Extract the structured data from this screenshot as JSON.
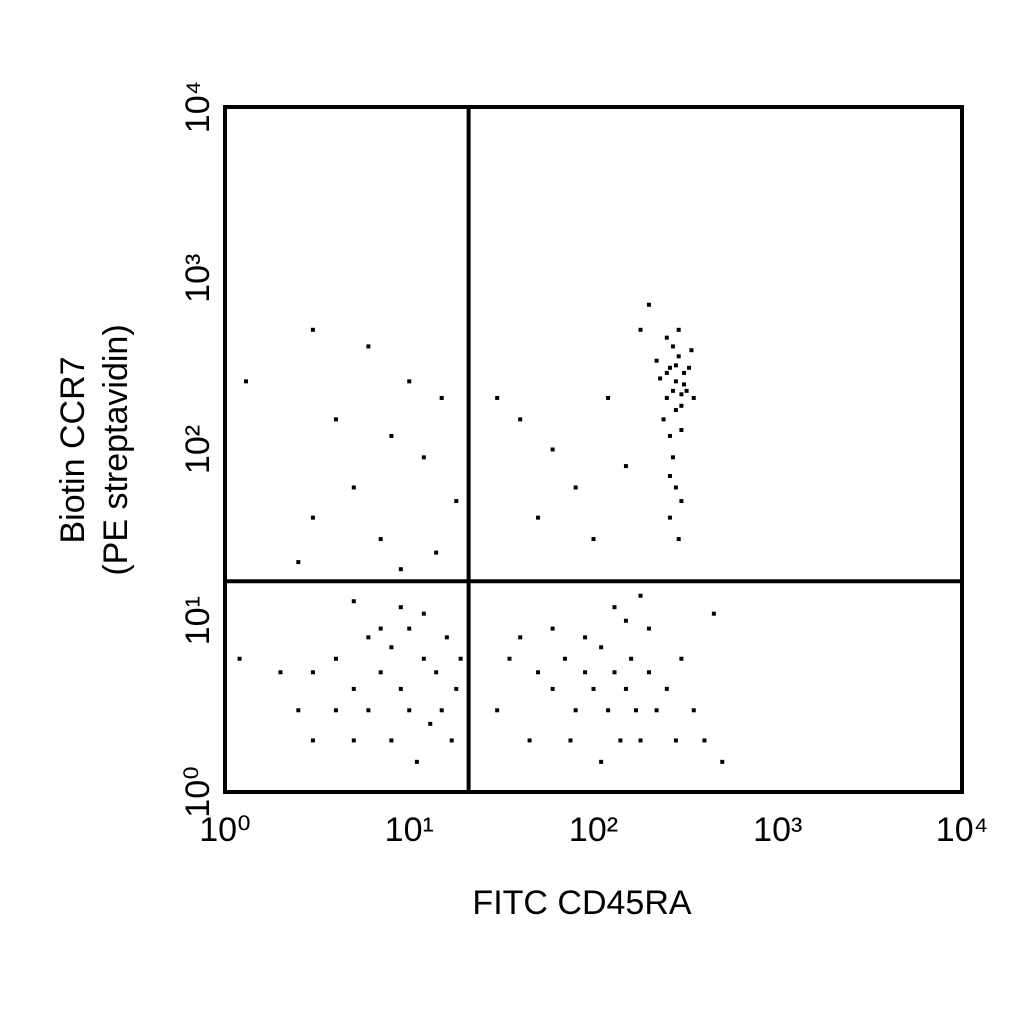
{
  "chart_data": {
    "type": "scatter",
    "x_label": "FITC CD45RA",
    "y_label": [
      "Biotin CCR7",
      "(PE streptavidin)"
    ],
    "xlog": true,
    "ylog": true,
    "color": "#000000",
    "xlim": [
      1,
      10000
    ],
    "ylim": [
      1,
      10000
    ],
    "xticks": [
      {
        "value": 1,
        "label": "10⁰"
      },
      {
        "value": 10,
        "label": "10¹"
      },
      {
        "value": 100,
        "label": "10²"
      },
      {
        "value": 1000,
        "label": "10³"
      },
      {
        "value": 10000,
        "label": "10⁴"
      }
    ],
    "yticks": [
      {
        "value": 1,
        "label": "10⁰"
      },
      {
        "value": 10,
        "label": "10¹"
      },
      {
        "value": 100,
        "label": "10²"
      },
      {
        "value": 1000,
        "label": "10³"
      },
      {
        "value": 10000,
        "label": "10⁴"
      }
    ],
    "gates": {
      "x": 21,
      "y": 17
    },
    "x": [
      250,
      280,
      300,
      260,
      320,
      240,
      290,
      270,
      310,
      230,
      350,
      260,
      300,
      280,
      330,
      250,
      290,
      270,
      260,
      280,
      300,
      260,
      290,
      310,
      220,
      340,
      270,
      300,
      250,
      280,
      3,
      6,
      10,
      15,
      4,
      8,
      12,
      5,
      18,
      3,
      7,
      14,
      2.5,
      9,
      30,
      40,
      60,
      80,
      50,
      100,
      150,
      120,
      200,
      180,
      1.3,
      3,
      4,
      5,
      6,
      7,
      8,
      9,
      10,
      12,
      14,
      16,
      18,
      5,
      6,
      8,
      10,
      4,
      3,
      7,
      11,
      13,
      15,
      2,
      2.5,
      17,
      19,
      9,
      5,
      12,
      1.2,
      50,
      60,
      70,
      80,
      90,
      100,
      110,
      120,
      130,
      140,
      150,
      160,
      170,
      180,
      200,
      220,
      250,
      280,
      300,
      350,
      400,
      500,
      40,
      60,
      90,
      150,
      200,
      30,
      35,
      45,
      75,
      110,
      130,
      180,
      450
    ],
    "y": [
      200,
      250,
      180,
      300,
      220,
      150,
      350,
      400,
      280,
      260,
      200,
      120,
      130,
      170,
      300,
      450,
      500,
      90,
      70,
      60,
      50,
      40,
      30,
      240,
      330,
      380,
      220,
      210,
      280,
      310,
      500,
      400,
      250,
      200,
      150,
      120,
      90,
      60,
      50,
      40,
      30,
      25,
      22,
      20,
      200,
      150,
      100,
      60,
      40,
      30,
      80,
      200,
      700,
      500,
      250,
      5,
      6,
      4,
      3,
      5,
      7,
      4,
      3,
      6,
      5,
      8,
      4,
      2,
      8,
      2,
      9,
      3,
      2,
      9,
      1.5,
      2.5,
      3,
      5,
      3,
      2,
      6,
      12,
      13,
      11,
      6,
      5,
      4,
      6,
      3,
      5,
      4,
      7,
      3,
      5,
      2,
      4,
      6,
      3,
      2,
      5,
      3,
      4,
      2,
      6,
      3,
      2,
      1.5,
      8,
      9,
      8,
      10,
      9,
      3,
      6,
      2,
      2,
      1.5,
      12,
      14,
      11
    ]
  }
}
